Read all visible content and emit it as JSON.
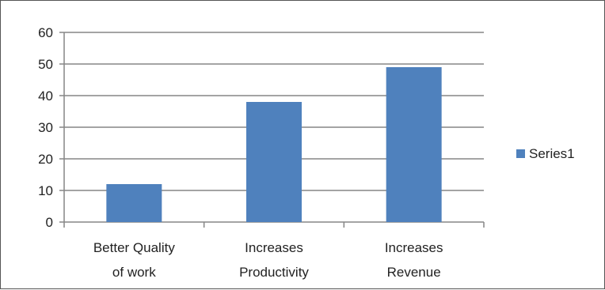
{
  "chart_data": {
    "type": "bar",
    "categories": [
      [
        "Better Quality",
        "of work"
      ],
      [
        "Increases",
        "Productivity"
      ],
      [
        "Increases",
        "Revenue"
      ]
    ],
    "series": [
      {
        "name": "Series1",
        "values": [
          12,
          38,
          49
        ],
        "color": "#4F81BD"
      }
    ],
    "ylim": [
      0,
      60
    ],
    "yticks": [
      0,
      10,
      20,
      30,
      40,
      50,
      60
    ],
    "grid": true,
    "legend": "right"
  }
}
